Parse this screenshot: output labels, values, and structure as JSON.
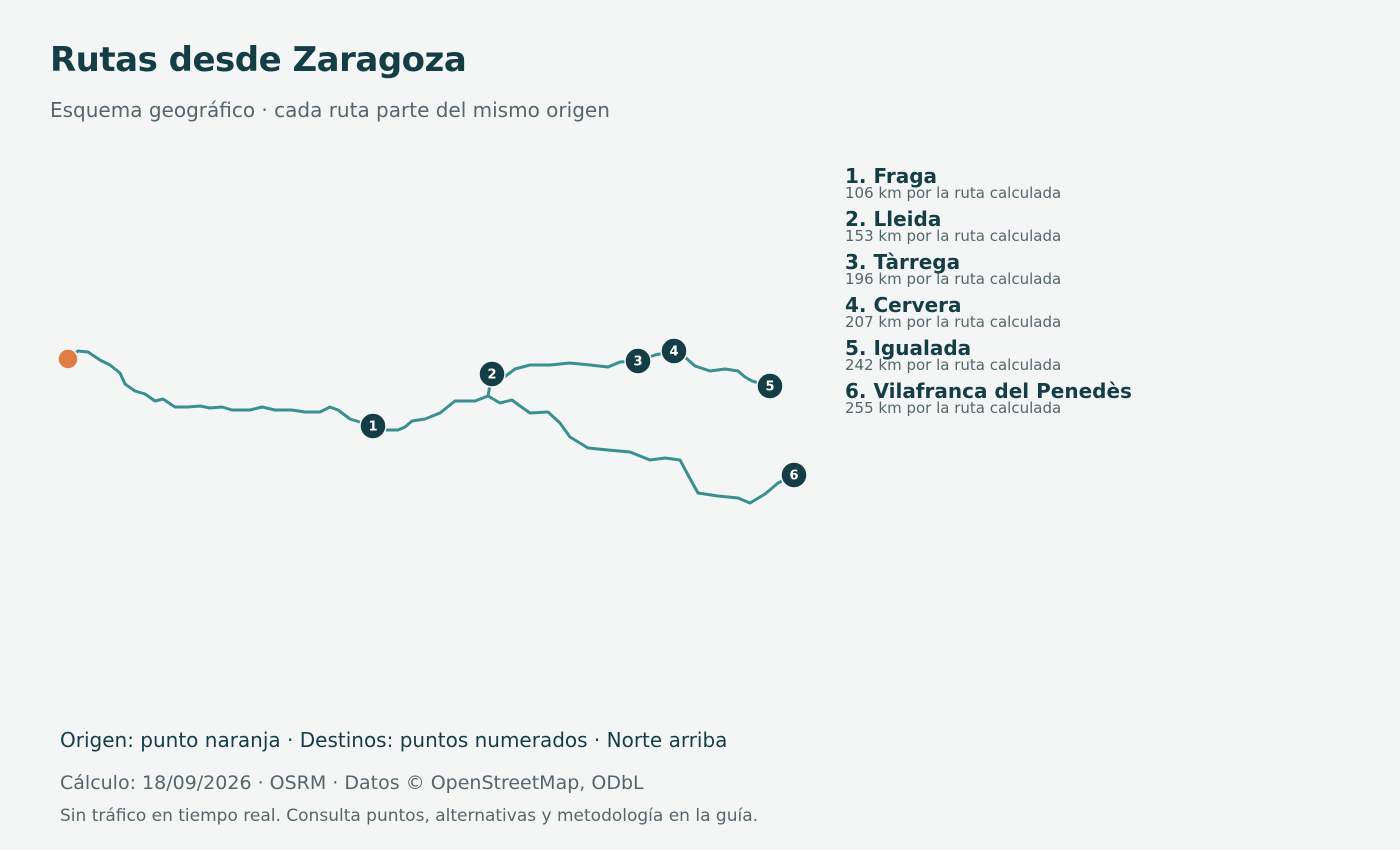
{
  "header": {
    "title": "Rutas desde Zaragoza",
    "subtitle": "Esquema geográfico · cada ruta parte del mismo origen"
  },
  "colors": {
    "route": "#3a8f91",
    "origin": "#e07e45",
    "destination_marker": "#143d45",
    "background": "#f4f6f6"
  },
  "map": {
    "origin": {
      "name": "Zaragoza",
      "symbol": "origin-dot"
    },
    "orientation": "Norte arriba",
    "destinations": [
      {
        "number": "1",
        "name": "Fraga",
        "label": "1. Fraga",
        "distance_km": 106,
        "detail": "106 km por la ruta calculada"
      },
      {
        "number": "2",
        "name": "Lleida",
        "label": "2. Lleida",
        "distance_km": 153,
        "detail": "153 km por la ruta calculada"
      },
      {
        "number": "3",
        "name": "Tàrrega",
        "label": "3. Tàrrega",
        "distance_km": 196,
        "detail": "196 km por la ruta calculada"
      },
      {
        "number": "4",
        "name": "Cervera",
        "label": "4. Cervera",
        "distance_km": 207,
        "detail": "207 km por la ruta calculada"
      },
      {
        "number": "5",
        "name": "Igualada",
        "label": "5. Igualada",
        "distance_km": 242,
        "detail": "242 km por la ruta calculada"
      },
      {
        "number": "6",
        "name": "Vilafranca del Penedès",
        "label": "6. Vilafranca del Penedès",
        "distance_km": 255,
        "detail": "255 km por la ruta calculada"
      }
    ]
  },
  "footer": {
    "note": "Origen: punto naranja · Destinos: puntos numerados · Norte arriba",
    "calculation": "Cálculo: 18/09/2026 · OSRM · Datos © OpenStreetMap, ODbL",
    "disclaimer": "Sin tráfico en tiempo real. Consulta puntos, alternativas y metodología en la guía."
  }
}
